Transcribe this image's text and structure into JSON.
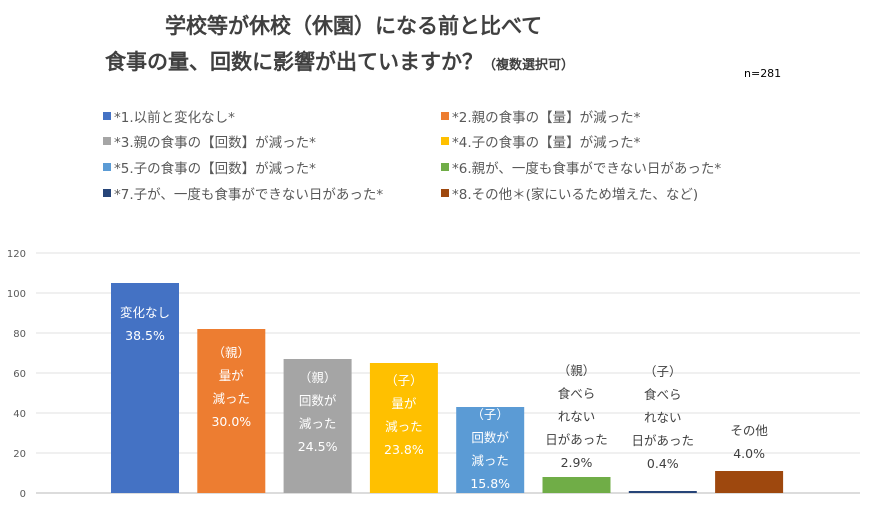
{
  "title_line1": "学校等が休校（休園）になる前と比べて",
  "title_line2": "食事の量、回数に影響が出ていますか？",
  "title_note": "（複数選択可）",
  "sample": "n=281",
  "chart_data": {
    "type": "bar",
    "y_ticks": [
      "0",
      "20",
      "40",
      "60",
      "80",
      "100",
      "120"
    ],
    "ylim": [
      0,
      120
    ],
    "grid": true,
    "legend_placement": "top",
    "legend": [
      {
        "label": "*1.以前と変化なし*",
        "color": "#4472C4"
      },
      {
        "label": "*2.親の食事の【量】が減った*",
        "color": "#ED7D31"
      },
      {
        "label": "*3.親の食事の【回数】が減った*",
        "color": "#A5A5A5"
      },
      {
        "label": "*4.子の食事の【量】が減った*",
        "color": "#FFC000"
      },
      {
        "label": "*5.子の食事の【回数】が減った*",
        "color": "#5B9BD5"
      },
      {
        "label": "*6.親が、一度も食事ができない日があった*",
        "color": "#70AD47"
      },
      {
        "label": "*7.子が、一度も食事ができない日があった*",
        "color": "#264478"
      },
      {
        "label": "*8.その他＊(家にいるため増えた、など)",
        "color": "#9E480E"
      }
    ],
    "values": [
      105,
      82,
      67,
      65,
      43,
      8,
      1,
      11
    ],
    "data_labels": [
      [
        "変化なし",
        "38.5%"
      ],
      [
        "（親）",
        "量が",
        "減った",
        "30.0%"
      ],
      [
        "（親）",
        "回数が",
        "減った",
        "24.5%"
      ],
      [
        "（子）",
        "量が",
        "減った",
        "23.8%"
      ],
      [
        "（子）",
        "回数が",
        "減った",
        "15.8%"
      ],
      [
        "（親）",
        "食べら",
        "れない",
        "日があった",
        "2.9%"
      ],
      [
        "（子）",
        "食べら",
        "れない",
        "日があった",
        "0.4%"
      ],
      [
        "その他",
        "4.0%"
      ]
    ]
  }
}
